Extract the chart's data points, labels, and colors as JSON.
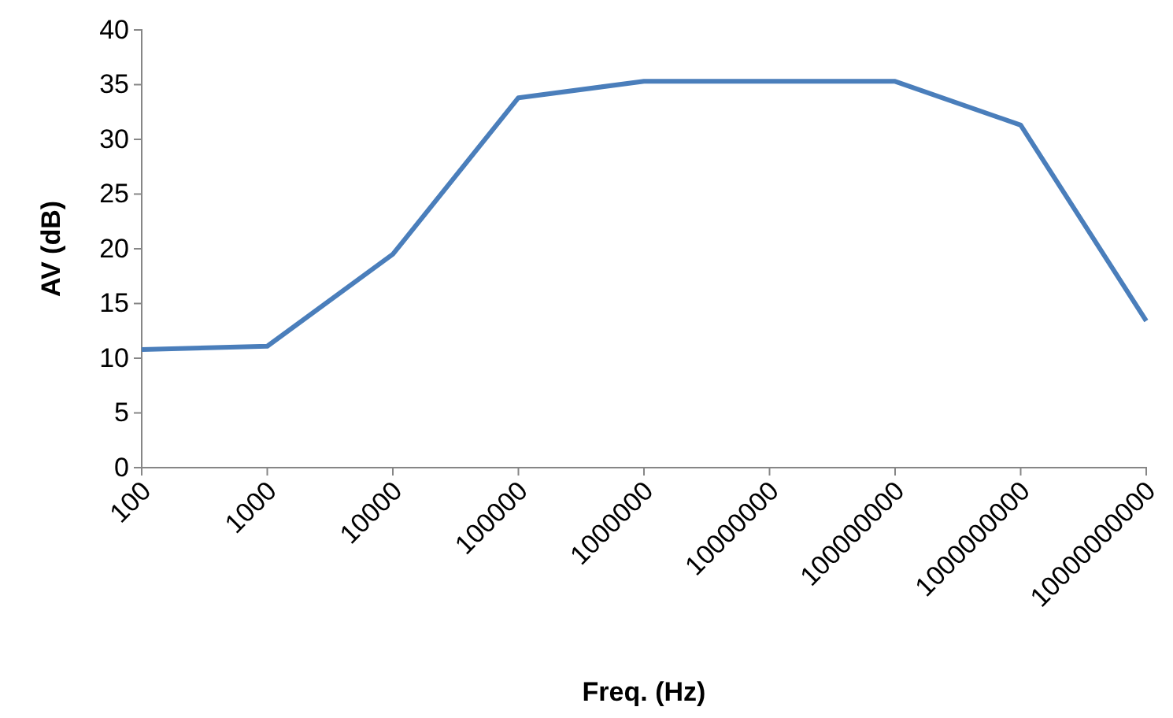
{
  "chart_data": {
    "type": "line",
    "xlabel": "Freq. (Hz)",
    "ylabel": "AV (dB)",
    "categories": [
      "100",
      "1000",
      "10000",
      "100000",
      "1000000",
      "10000000",
      "100000000",
      "1000000000",
      "10000000000"
    ],
    "series": [
      {
        "color": "#4a7ebb",
        "values": [
          10.8,
          11.1,
          19.5,
          33.8,
          35.3,
          35.3,
          35.3,
          31.3,
          13.4
        ]
      }
    ],
    "ylim": [
      0,
      40
    ],
    "yticks": [
      0,
      5,
      10,
      15,
      20,
      25,
      30,
      35,
      40
    ],
    "grid": false,
    "legend": false,
    "marker": "none",
    "line_style": "solid"
  }
}
